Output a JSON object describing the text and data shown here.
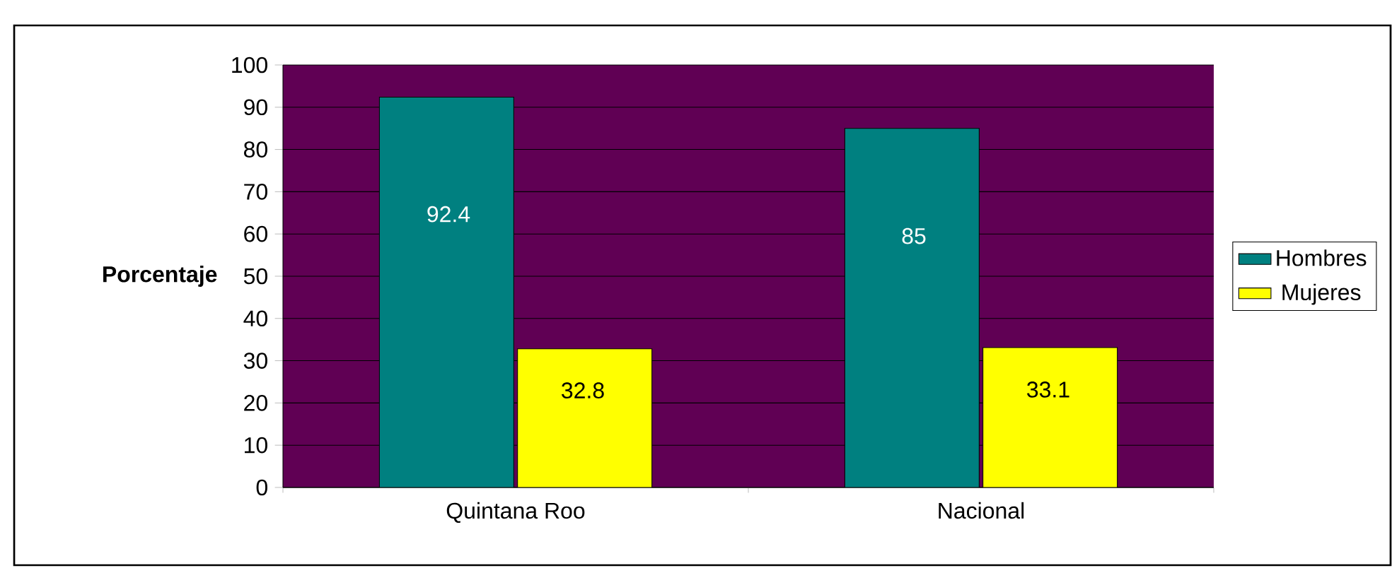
{
  "chart_data": {
    "type": "bar",
    "ylabel": "Porcentaje",
    "categories": [
      "Quintana Roo",
      "Nacional"
    ],
    "series": [
      {
        "name": "Hombres",
        "color": "#008080",
        "values": [
          92.4,
          85
        ]
      },
      {
        "name": "Mujeres",
        "color": "#ffff00",
        "values": [
          32.8,
          33.1
        ]
      }
    ],
    "ylim": [
      0,
      100
    ],
    "yticks": [
      0,
      10,
      20,
      30,
      40,
      50,
      60,
      70,
      80,
      90,
      100
    ],
    "grid": "y",
    "legend": "right",
    "data_labels": true
  }
}
